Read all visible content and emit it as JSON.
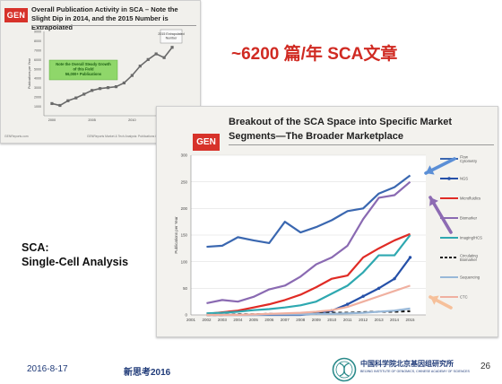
{
  "slide": {
    "headline": "~6200 篇/年 SCA文章",
    "sca_line1": "SCA:",
    "sca_line2": "Single-Cell Analysis",
    "date": "2016-8-17",
    "conference": "新思考2016",
    "page_number": "26",
    "institute_cn": "中国科学院北京基因组研究所",
    "institute_en": "BEIJING INSTITUTE OF GENOMICS, CHINESE ACADEMY OF SCIENCES"
  },
  "card1": {
    "logo": "GEN",
    "title": "Overall Publication Activity in SCA – Note the Slight Dip in 2014, and the 2015 Number is Extrapolated",
    "footer_left": "GENReports.com",
    "footer_right": "GENReports Market & Tech Analysis: Publications in Single-Cell Analysis 2015 and 2016"
  },
  "card2": {
    "logo": "GEN",
    "title_line1": "Breakout of the SCA Space into Specific Market",
    "title_line2": "Segments—The Broader Marketplace"
  },
  "chart_data": [
    {
      "type": "line",
      "x": [
        "2000",
        "2005",
        "2010",
        "2015"
      ],
      "ylabel": "Publications per Year",
      "y_ticks": [
        "1000",
        "2000",
        "3000",
        "4000",
        "5000",
        "6000",
        "7000",
        "8000",
        "9000"
      ],
      "ylim": [
        0,
        9000
      ],
      "series": [
        {
          "x": [
            2000,
            2001,
            2002,
            2003,
            2004,
            2005,
            2006,
            2007,
            2008,
            2009,
            2010,
            2011,
            2012,
            2013,
            2014,
            2015
          ],
          "values": [
            1300,
            1100,
            1600,
            1900,
            2300,
            2700,
            2900,
            3000,
            3100,
            3500,
            4300,
            5300,
            6000,
            6600,
            6200,
            7300
          ]
        }
      ],
      "annotations": [
        "Note the Overall Steady Growth of this Field 56,000+ Publications",
        "2015 Extrapolated Number"
      ],
      "colors": {
        "line": "#6a6a6a",
        "note_box": "#8fd76a",
        "note_text": "#1a5e12"
      },
      "grid": false
    },
    {
      "type": "line",
      "categories": [
        "2001",
        "2002",
        "2003",
        "2004",
        "2005",
        "2006",
        "2007",
        "2008",
        "2009",
        "2010",
        "2011",
        "2012",
        "2013",
        "2014",
        "2015"
      ],
      "ylabel": "Publications per Year",
      "y_ticks": [
        "0",
        "50",
        "100",
        "150",
        "200",
        "250",
        "300"
      ],
      "ylim": [
        0,
        300
      ],
      "legend_position": "right",
      "grid": true,
      "series": [
        {
          "name": "Flow Cytometry",
          "color": "#3a67b0",
          "x": [
            2002,
            2003,
            2004,
            2005,
            2006,
            2007,
            2008,
            2009,
            2010,
            2011,
            2012,
            2013,
            2014,
            2015
          ],
          "values": [
            128,
            130,
            146,
            140,
            135,
            175,
            155,
            165,
            178,
            195,
            200,
            228,
            240,
            262
          ]
        },
        {
          "name": "NGS",
          "color": "#2550a8",
          "marker": true,
          "x": [
            2002,
            2003,
            2004,
            2005,
            2006,
            2007,
            2008,
            2009,
            2010,
            2011,
            2012,
            2013,
            2014,
            2015
          ],
          "values": [
            0,
            0,
            0,
            0,
            0,
            0,
            0,
            3,
            8,
            20,
            35,
            50,
            68,
            108
          ]
        },
        {
          "name": "Microfluidics",
          "color": "#e02b25",
          "x": [
            2002,
            2003,
            2004,
            2005,
            2006,
            2007,
            2008,
            2009,
            2010,
            2011,
            2012,
            2013,
            2014,
            2015
          ],
          "values": [
            2,
            5,
            8,
            14,
            20,
            28,
            38,
            52,
            68,
            74,
            108,
            125,
            140,
            152
          ]
        },
        {
          "name": "Biomarker",
          "color": "#8a6ab2",
          "x": [
            2002,
            2003,
            2004,
            2005,
            2006,
            2007,
            2008,
            2009,
            2010,
            2011,
            2012,
            2013,
            2014,
            2015
          ],
          "values": [
            22,
            28,
            25,
            34,
            48,
            55,
            72,
            95,
            108,
            130,
            180,
            220,
            225,
            250
          ]
        },
        {
          "name": "Imaging/HCS",
          "color": "#2ea8b0",
          "x": [
            2002,
            2003,
            2004,
            2005,
            2006,
            2007,
            2008,
            2009,
            2010,
            2011,
            2012,
            2013,
            2014,
            2015
          ],
          "values": [
            3,
            4,
            6,
            9,
            11,
            14,
            18,
            25,
            40,
            55,
            80,
            112,
            112,
            150
          ]
        },
        {
          "name": "Circulating Biomarker",
          "color": "#1a1a1a",
          "dashed": true,
          "x": [
            2002,
            2003,
            2004,
            2005,
            2006,
            2007,
            2008,
            2009,
            2010,
            2011,
            2012,
            2013,
            2014,
            2015
          ],
          "values": [
            0,
            0,
            1,
            1,
            2,
            2,
            3,
            3,
            4,
            4,
            5,
            6,
            6,
            7
          ]
        },
        {
          "name": "Sequencing",
          "color": "#98b8d8",
          "x": [
            2002,
            2003,
            2004,
            2005,
            2006,
            2007,
            2008,
            2009,
            2010,
            2011,
            2012,
            2013,
            2014,
            2015
          ],
          "values": [
            0,
            0,
            0,
            0,
            1,
            1,
            1,
            2,
            2,
            3,
            4,
            6,
            8,
            12
          ]
        },
        {
          "name": "CTC",
          "color": "#f0b0a0",
          "x": [
            2002,
            2003,
            2004,
            2005,
            2006,
            2007,
            2008,
            2009,
            2010,
            2011,
            2012,
            2013,
            2014,
            2015
          ],
          "values": [
            0,
            0,
            0,
            1,
            2,
            3,
            4,
            6,
            9,
            15,
            25,
            35,
            45,
            55
          ]
        }
      ],
      "colors": {
        "arrow_blue": "#5b8fd6",
        "arrow_purple": "#8d6bb3",
        "arrow_peach": "#f6c09a"
      }
    }
  ]
}
